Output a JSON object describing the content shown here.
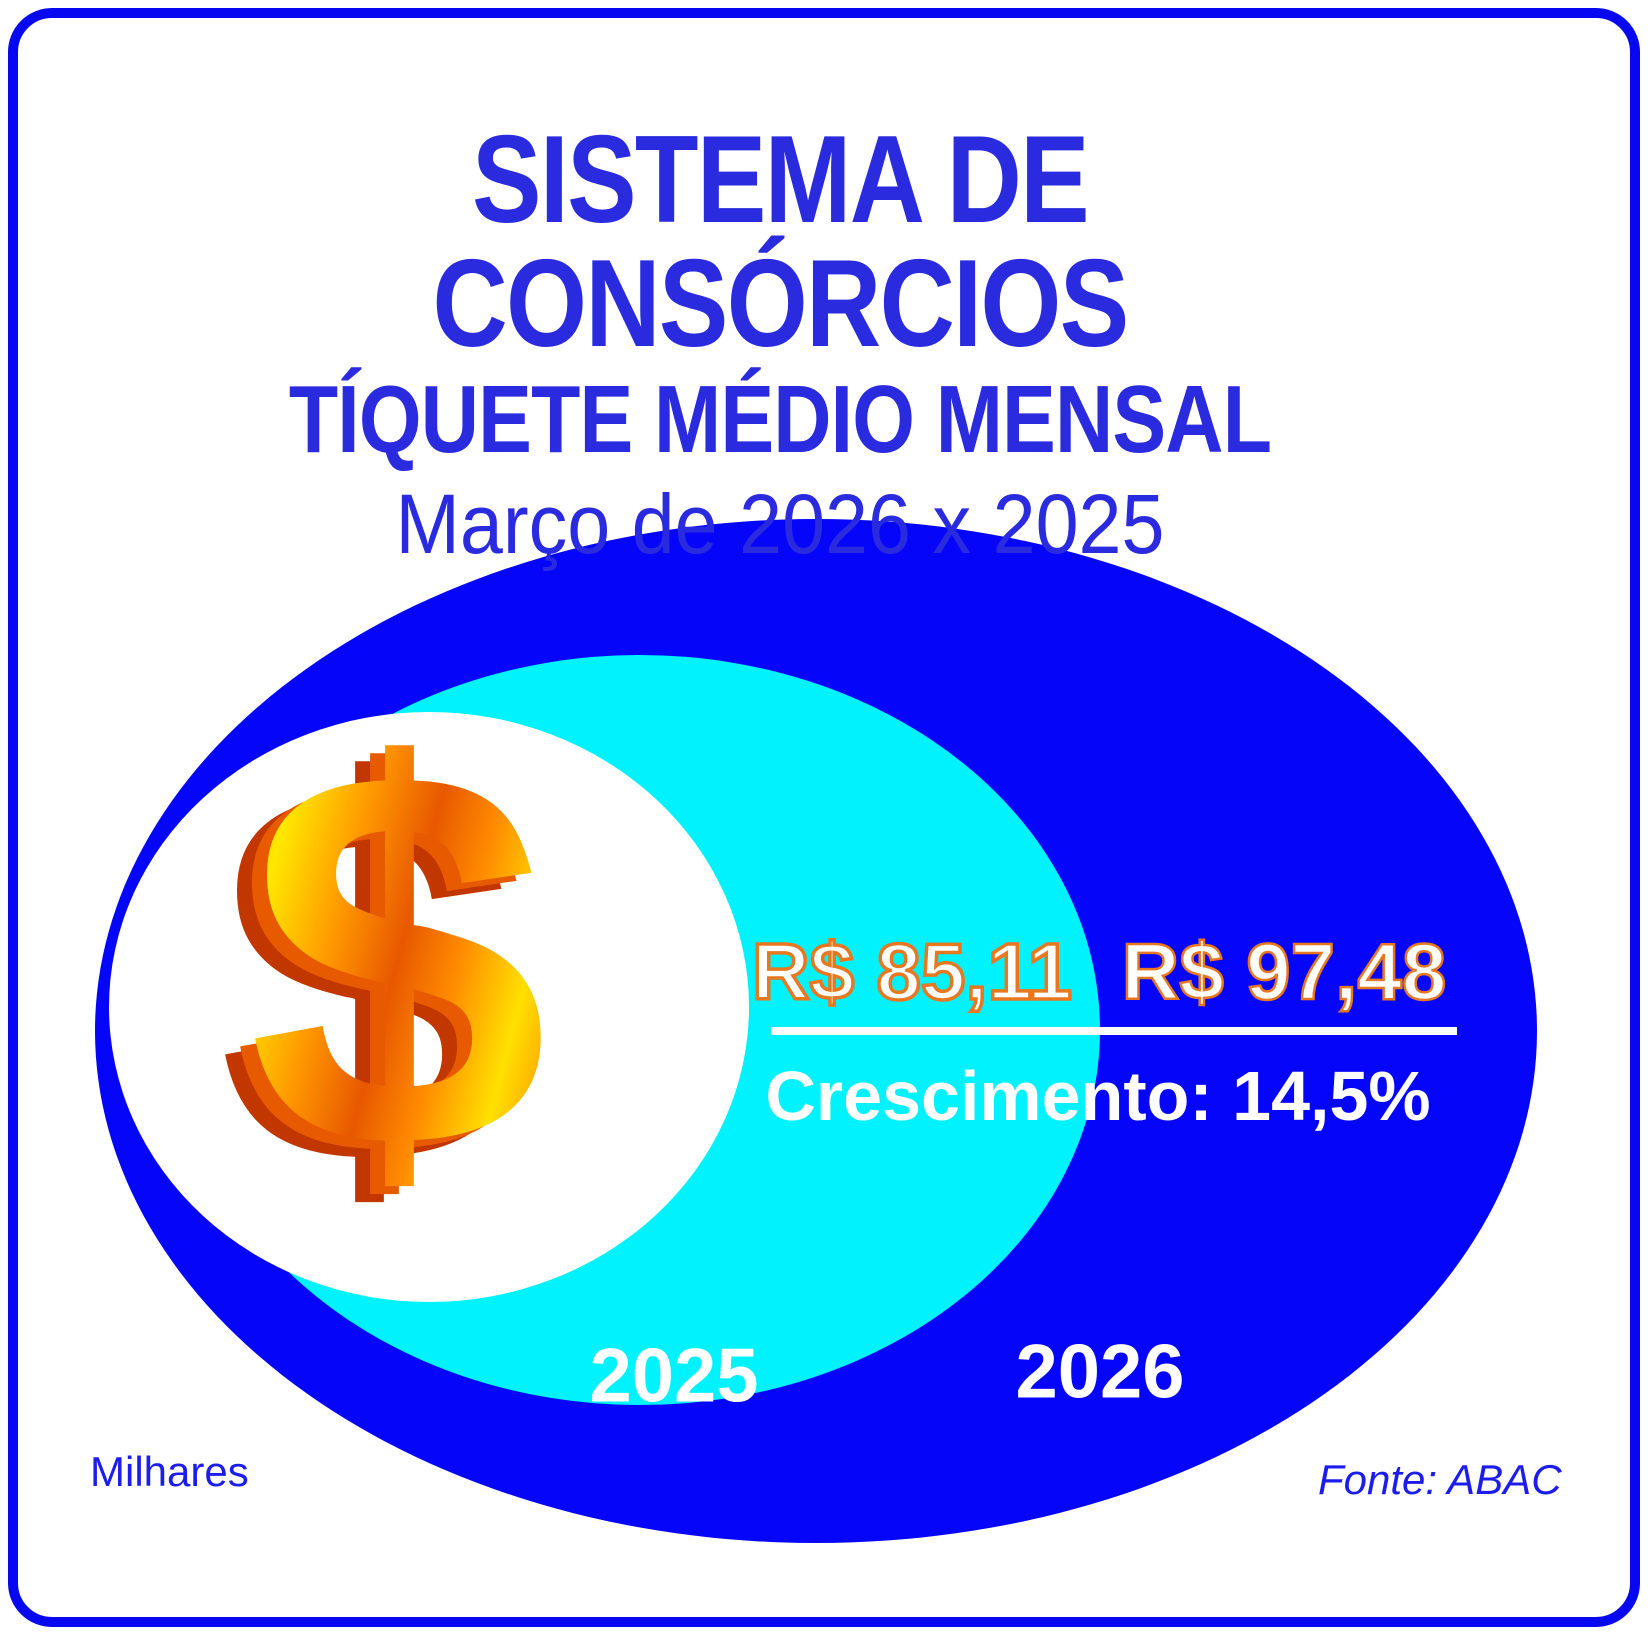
{
  "header": {
    "line1": "SISTEMA DE CONSÓRCIOS",
    "line2": "TÍQUETE MÉDIO MENSAL",
    "line3": "Março de 2026 x 2025"
  },
  "chart_data": {
    "type": "area",
    "subtype": "proportional-nested-ellipses",
    "title": "SISTEMA DE CONSÓRCIOS — TÍQUETE MÉDIO MENSAL",
    "subtitle": "Março de 2026 x 2025",
    "categories": [
      "2025",
      "2026"
    ],
    "series": [
      {
        "name": "Tíquete médio mensal",
        "unit": "R$ (milhares)",
        "values": [
          85.11,
          97.48
        ]
      }
    ],
    "value_labels": [
      "R$ 85,11",
      "R$ 97,48"
    ],
    "growth_label": "Crescimento: 14,5%",
    "growth_percent": 14.5,
    "legend_position": "inside-shapes",
    "colors": {
      "ellipse_2026": "#0505FA",
      "ellipse_2025": "#00F2FC",
      "center_disc": "#FFFFFF",
      "value_fill": "#FFFFFF",
      "value_outline": "#E87820",
      "title_text": "#2A2ADF",
      "footer_text": "#1C1CEC",
      "border": "#0707F2"
    }
  },
  "icons": {
    "dollar": "$"
  },
  "footer": {
    "unit_note": "Milhares",
    "source": "Fonte: ABAC"
  }
}
